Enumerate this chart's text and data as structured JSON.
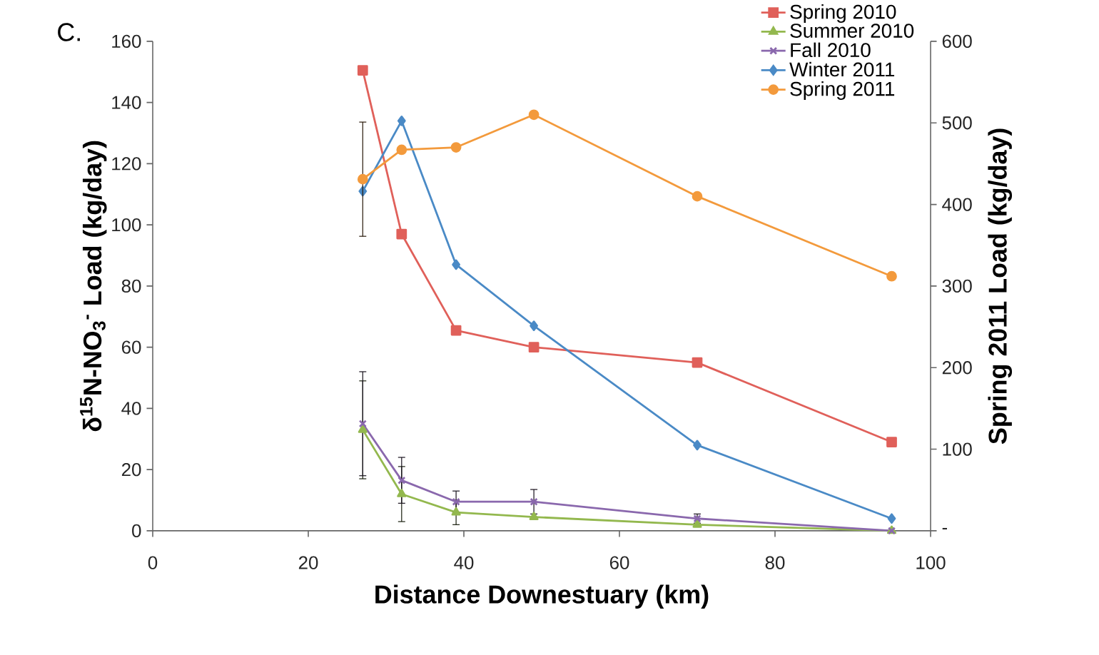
{
  "chart_data": {
    "type": "line",
    "title": "C.",
    "xlabel": "Distance Downestuary (km)",
    "ylabel": "δ$^{15}$N-NO$_{3}$$^{-}$ Load (kg/day)",
    "y2label": "Spring 2011 Load (kg/day)",
    "xlim": [
      0,
      100
    ],
    "xticks": [
      0,
      20,
      40,
      60,
      80,
      100
    ],
    "ylim": [
      0,
      160
    ],
    "yticks": [
      0,
      20,
      40,
      60,
      80,
      100,
      120,
      140,
      160
    ],
    "y2lim": [
      0,
      600
    ],
    "y2ticks": [
      {
        "value": 0,
        "label": "-"
      },
      100,
      200,
      300,
      400,
      500,
      600
    ],
    "grid": false,
    "legend": "top right",
    "x": [
      27,
      32,
      39,
      49,
      70,
      95
    ],
    "series": [
      {
        "name": "Spring 2010",
        "color": "#e0605a",
        "marker": "square",
        "values": [
          150.5,
          97,
          65.5,
          60,
          55,
          29
        ]
      },
      {
        "name": "Summer 2010",
        "color": "#93b84e",
        "marker": "triangle",
        "values": [
          33,
          12,
          6,
          4.5,
          2,
          0
        ],
        "errors": [
          16,
          9,
          4,
          null,
          null,
          null
        ]
      },
      {
        "name": "Fall 2010",
        "color": "#8a68ad",
        "marker": "cross",
        "values": [
          35,
          16.5,
          9.5,
          9.5,
          4,
          0
        ],
        "errors": [
          17,
          7.5,
          3.5,
          4,
          1.5,
          null
        ]
      },
      {
        "name": "Winter 2011",
        "color": "#4a8ac6",
        "marker": "diamond",
        "values": [
          111,
          134,
          87,
          67,
          28,
          4
        ]
      },
      {
        "name": "Spring 2011",
        "color": "#f39a3c",
        "marker": "circle",
        "axis": "y2",
        "values": [
          431,
          467,
          470,
          510,
          410,
          312
        ],
        "errors": [
          70,
          null,
          null,
          null,
          null,
          null
        ]
      }
    ]
  }
}
